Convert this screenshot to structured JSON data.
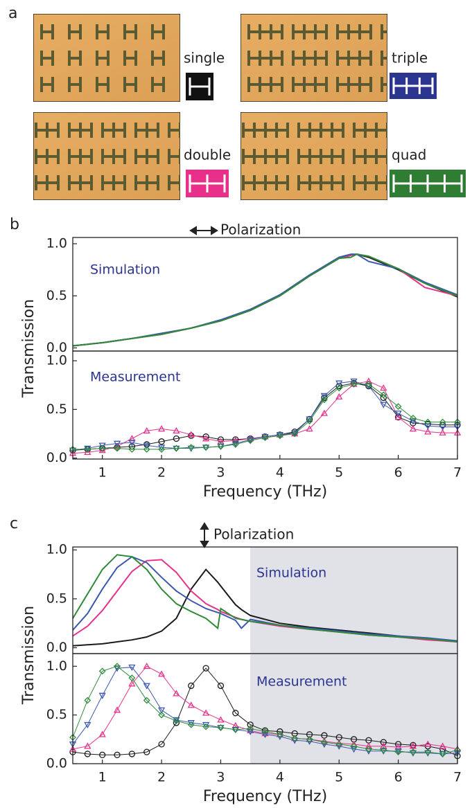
{
  "panel_a": {
    "label": "a",
    "samples": [
      {
        "name": "single",
        "color": "#111111"
      },
      {
        "name": "double",
        "color": "#e8308a"
      },
      {
        "name": "triple",
        "color": "#2b3590"
      },
      {
        "name": "quad",
        "color": "#2f7d32"
      }
    ]
  },
  "panel_b": {
    "label": "b",
    "polarization": "Polarization",
    "ylabel": "Transmission"
  },
  "panel_c": {
    "label": "c",
    "polarization": "Polarization",
    "ylabel": "Transmission"
  },
  "chart_data": [
    {
      "type": "line",
      "annotation": "Simulation",
      "xlim": [
        0.5,
        7
      ],
      "ylim": [
        -0.03,
        1.06
      ],
      "yticks": [
        {
          "value": 1,
          "label": "1.0"
        },
        0.5,
        {
          "value": 0,
          "label": "0.0"
        }
      ],
      "x": [
        0.5,
        1,
        1.5,
        2,
        2.5,
        3,
        3.5,
        4,
        4.5,
        5,
        5.2,
        5.3,
        5.5,
        6,
        6.45,
        7
      ],
      "series": [
        {
          "color": "#1a1a1a",
          "marker": "none",
          "values": [
            0.02,
            0.05,
            0.09,
            0.13,
            0.19,
            0.26,
            0.36,
            0.5,
            0.69,
            0.86,
            0.89,
            0.9,
            0.87,
            0.75,
            0.62,
            0.49
          ]
        },
        {
          "color": "#e8308a",
          "marker": "none",
          "values": [
            0.02,
            0.05,
            0.09,
            0.13,
            0.19,
            0.26,
            0.36,
            0.5,
            0.69,
            0.86,
            0.89,
            0.9,
            0.88,
            0.76,
            0.58,
            0.5
          ]
        },
        {
          "color": "#3a58b0",
          "marker": "none",
          "values": [
            0.02,
            0.05,
            0.09,
            0.14,
            0.19,
            0.27,
            0.37,
            0.51,
            0.7,
            0.87,
            0.9,
            0.9,
            0.83,
            0.76,
            0.63,
            0.51
          ]
        },
        {
          "color": "#2e8b3a",
          "marker": "none",
          "values": [
            0.02,
            0.05,
            0.09,
            0.13,
            0.19,
            0.26,
            0.36,
            0.5,
            0.69,
            0.86,
            0.87,
            0.9,
            0.88,
            0.76,
            0.62,
            0.5
          ]
        }
      ]
    },
    {
      "type": "line",
      "annotation": "Measurement",
      "xlabel": "Frequency (THz)",
      "xlim": [
        0.5,
        7
      ],
      "ylim": [
        -0.01,
        1.1
      ],
      "xticks": [
        1,
        2,
        3,
        4,
        5,
        6,
        7
      ],
      "yticks": [
        {
          "value": 1,
          "label": "1.0"
        },
        0.5,
        {
          "value": 0,
          "label": "0.0"
        }
      ],
      "x": [
        0.5,
        0.75,
        1,
        1.25,
        1.5,
        1.75,
        2,
        2.25,
        2.5,
        2.75,
        3,
        3.25,
        3.5,
        3.75,
        4,
        4.25,
        4.5,
        4.75,
        5,
        5.25,
        5.5,
        5.75,
        6,
        6.25,
        6.5,
        6.75,
        7
      ],
      "series": [
        {
          "color": "#1a1a1a",
          "marker": "circle",
          "values": [
            0.08,
            0.09,
            0.1,
            0.11,
            0.12,
            0.14,
            0.17,
            0.2,
            0.23,
            0.22,
            0.19,
            0.19,
            0.2,
            0.22,
            0.24,
            0.27,
            0.4,
            0.62,
            0.74,
            0.77,
            0.74,
            0.62,
            0.42,
            0.36,
            0.35,
            0.34,
            0.34
          ]
        },
        {
          "color": "#e8308a",
          "marker": "triangle-up",
          "values": [
            0.05,
            0.06,
            0.08,
            0.12,
            0.2,
            0.28,
            0.3,
            0.28,
            0.24,
            0.2,
            0.17,
            0.18,
            0.2,
            0.22,
            0.24,
            0.25,
            0.3,
            0.46,
            0.63,
            0.76,
            0.79,
            0.72,
            0.42,
            0.3,
            0.27,
            0.26,
            0.26
          ]
        },
        {
          "color": "#3a58b0",
          "marker": "triangle-down",
          "values": [
            0.08,
            0.1,
            0.13,
            0.15,
            0.16,
            0.13,
            0.11,
            0.1,
            0.1,
            0.11,
            0.12,
            0.15,
            0.19,
            0.22,
            0.24,
            0.26,
            0.4,
            0.64,
            0.77,
            0.79,
            0.74,
            0.55,
            0.46,
            0.38,
            0.33,
            0.32,
            0.32
          ]
        },
        {
          "color": "#2e8b3a",
          "marker": "diamond",
          "values": [
            0.09,
            0.09,
            0.1,
            0.1,
            0.09,
            0.09,
            0.09,
            0.1,
            0.11,
            0.11,
            0.12,
            0.14,
            0.18,
            0.21,
            0.23,
            0.25,
            0.38,
            0.6,
            0.72,
            0.76,
            0.76,
            0.65,
            0.53,
            0.41,
            0.37,
            0.37,
            0.37
          ]
        }
      ]
    },
    {
      "type": "line",
      "annotation": "Simulation",
      "xlim": [
        0.5,
        7
      ],
      "ylim": [
        -0.06,
        1.03
      ],
      "shade": [
        3.5,
        7
      ],
      "yticks": [
        {
          "value": 1,
          "label": "1.0"
        },
        0.5,
        {
          "value": 0,
          "label": "0.0"
        }
      ],
      "x": [
        0.5,
        0.75,
        1,
        1.25,
        1.5,
        1.75,
        2,
        2.25,
        2.5,
        2.75,
        2.95,
        3,
        3.25,
        3.35,
        3.5,
        4,
        4.5,
        5,
        5.5,
        6,
        6.5,
        7
      ],
      "series": [
        {
          "color": "#1a1a1a",
          "marker": "none",
          "values": [
            0.02,
            0.03,
            0.04,
            0.06,
            0.08,
            0.11,
            0.17,
            0.3,
            0.6,
            0.8,
            0.67,
            0.63,
            0.44,
            0.39,
            0.33,
            0.25,
            0.21,
            0.18,
            0.15,
            0.12,
            0.09,
            0.06
          ]
        },
        {
          "color": "#e8308a",
          "marker": "none",
          "values": [
            0.12,
            0.22,
            0.38,
            0.58,
            0.78,
            0.89,
            0.9,
            0.77,
            0.58,
            0.45,
            0.39,
            0.37,
            0.31,
            0.29,
            0.27,
            0.22,
            0.19,
            0.16,
            0.13,
            0.11,
            0.08,
            0.06
          ]
        },
        {
          "color": "#3a58b0",
          "marker": "none",
          "values": [
            0.18,
            0.35,
            0.6,
            0.82,
            0.93,
            0.87,
            0.72,
            0.58,
            0.48,
            0.4,
            0.36,
            0.35,
            0.28,
            0.2,
            0.29,
            0.23,
            0.2,
            0.17,
            0.14,
            0.12,
            0.1,
            0.07
          ]
        },
        {
          "color": "#2e8b3a",
          "marker": "none",
          "values": [
            0.3,
            0.55,
            0.8,
            0.95,
            0.93,
            0.8,
            0.6,
            0.45,
            0.37,
            0.3,
            0.2,
            0.4,
            0.3,
            0.29,
            0.27,
            0.23,
            0.19,
            0.16,
            0.13,
            0.11,
            0.09,
            0.06
          ]
        }
      ]
    },
    {
      "type": "line",
      "annotation": "Measurement",
      "xlabel": "Frequency (THz)",
      "xlim": [
        0.5,
        7
      ],
      "ylim": [
        0,
        1.13
      ],
      "shade": [
        3.5,
        7
      ],
      "xticks": [
        1,
        2,
        3,
        4,
        5,
        6,
        7
      ],
      "yticks": [
        {
          "value": 1,
          "label": "1.0"
        },
        0.5,
        {
          "value": 0,
          "label": "0.0"
        }
      ],
      "x": [
        0.5,
        0.75,
        1,
        1.25,
        1.5,
        1.75,
        2,
        2.25,
        2.5,
        2.75,
        3,
        3.25,
        3.5,
        3.75,
        4,
        4.25,
        4.5,
        4.75,
        5,
        5.25,
        5.5,
        5.75,
        6,
        6.25,
        6.5,
        6.75,
        7
      ],
      "series": [
        {
          "color": "#1a1a1a",
          "marker": "circle",
          "values": [
            0.12,
            0.1,
            0.09,
            0.09,
            0.1,
            0.12,
            0.2,
            0.42,
            0.8,
            0.98,
            0.8,
            0.52,
            0.4,
            0.34,
            0.33,
            0.31,
            0.3,
            0.29,
            0.27,
            0.25,
            0.24,
            0.22,
            0.2,
            0.19,
            0.18,
            0.15,
            0.08
          ]
        },
        {
          "color": "#e8308a",
          "marker": "triangle-up",
          "values": [
            0.15,
            0.18,
            0.3,
            0.55,
            0.82,
            1.0,
            0.92,
            0.72,
            0.6,
            0.52,
            0.45,
            0.39,
            0.34,
            0.31,
            0.3,
            0.26,
            0.25,
            0.23,
            0.21,
            0.2,
            0.18,
            0.18,
            0.17,
            0.18,
            0.2,
            0.18,
            0.15
          ]
        },
        {
          "color": "#3a58b0",
          "marker": "triangle-down",
          "values": [
            0.2,
            0.4,
            0.7,
            0.98,
            0.99,
            0.8,
            0.55,
            0.45,
            0.42,
            0.4,
            0.37,
            0.35,
            0.33,
            0.3,
            0.28,
            0.24,
            0.23,
            0.2,
            0.18,
            0.15,
            0.13,
            0.13,
            0.13,
            0.11,
            0.11,
            0.1,
            0.11
          ]
        },
        {
          "color": "#2e8b3a",
          "marker": "diamond",
          "values": [
            0.27,
            0.65,
            0.95,
            1.0,
            0.88,
            0.65,
            0.5,
            0.44,
            0.4,
            0.38,
            0.37,
            0.35,
            0.36,
            0.33,
            0.3,
            0.26,
            0.25,
            0.22,
            0.2,
            0.18,
            0.15,
            0.14,
            0.12,
            0.12,
            0.12,
            0.1,
            0.14
          ]
        }
      ]
    }
  ]
}
